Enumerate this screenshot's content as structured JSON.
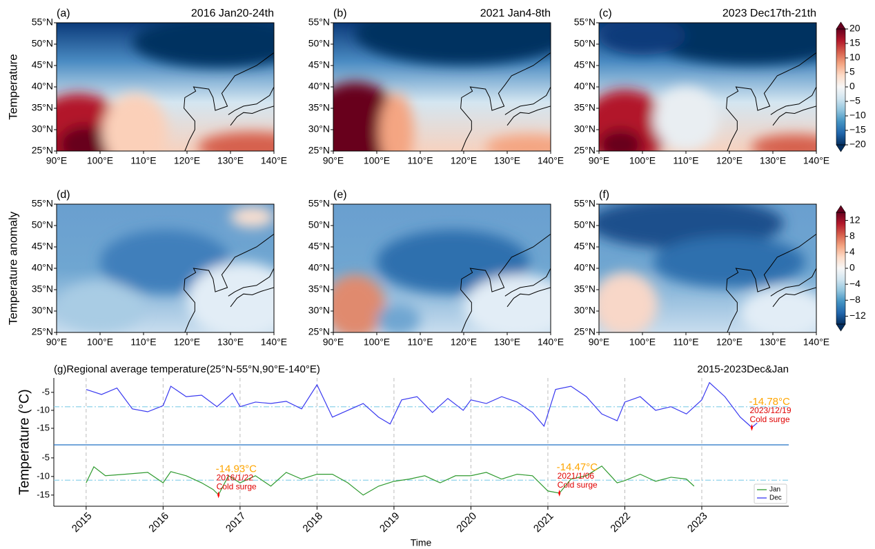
{
  "maps": {
    "lat_lim": [
      25,
      55
    ],
    "lon_lim": [
      90,
      140
    ],
    "lat_ticks": [
      {
        "value": 55,
        "label": "55°N"
      },
      {
        "value": 50,
        "label": "50°N"
      },
      {
        "value": 45,
        "label": "45°N"
      },
      {
        "value": 40,
        "label": "40°N"
      },
      {
        "value": 35,
        "label": "35°N"
      },
      {
        "value": 30,
        "label": "30°N"
      },
      {
        "value": 25,
        "label": "25°N"
      }
    ],
    "lon_ticks": [
      {
        "value": 90,
        "label": "90°E"
      },
      {
        "value": 100,
        "label": "100°E"
      },
      {
        "value": 110,
        "label": "110°E"
      },
      {
        "value": 120,
        "label": "120°E"
      },
      {
        "value": 130,
        "label": "130°E"
      },
      {
        "value": 140,
        "label": "140°E"
      }
    ],
    "rows": [
      {
        "ylabel": "Temperature",
        "panels": [
          {
            "label": "(a)",
            "title": "2016 Jan20-24th"
          },
          {
            "label": "(b)",
            "title": "2021 Jan4-8th"
          },
          {
            "label": "(c)",
            "title": "2023 Dec17th-21th"
          }
        ],
        "colorbar": {
          "lim": [
            -20,
            20
          ],
          "ticks": [
            20,
            15,
            10,
            5,
            0,
            {
              "value": -5,
              "label": "−5"
            },
            {
              "value": -10,
              "label": "−10"
            },
            {
              "value": -15,
              "label": "−15"
            },
            {
              "value": -20,
              "label": "−20"
            }
          ]
        }
      },
      {
        "ylabel": "Temperature anomaly",
        "panels": [
          {
            "label": "(d)"
          },
          {
            "label": "(e)"
          },
          {
            "label": "(f)"
          }
        ],
        "colorbar": {
          "lim": [
            -14,
            14
          ],
          "ticks": [
            12,
            8,
            4,
            0,
            {
              "value": -4,
              "label": "−4"
            },
            {
              "value": -8,
              "label": "−8"
            },
            {
              "value": -12,
              "label": "−12"
            }
          ]
        }
      }
    ]
  },
  "chart_data": {
    "type": "line",
    "title": "(g)Regional average temperature(25°N-55°N,90°E-140°E)",
    "subtitle": "2015-2023Dec&Jan",
    "x_label": "Time",
    "y_label": "Temperature (°C)",
    "xlim": [
      2014.58,
      2024.13
    ],
    "xticks": [
      2015,
      2016,
      2017,
      2018,
      2019,
      2020,
      2021,
      2022,
      2023
    ],
    "ylim": [
      -19.6,
      -1
    ],
    "yticks": [
      -5,
      -10,
      -15
    ],
    "y2lim": [
      -18,
      -1.5
    ],
    "y2ticks": [
      -5,
      -10,
      -15
    ],
    "grid": true,
    "legend": "lower right",
    "series": [
      {
        "name": "Jan",
        "color": "#2e9a2e",
        "axis": "y2",
        "mean": -11,
        "x": [
          2015.0,
          2015.1,
          2015.25,
          2015.5,
          2015.8,
          2016.0,
          2016.1,
          2016.3,
          2016.5,
          2016.65,
          2016.72,
          2016.85,
          2017.0,
          2017.2,
          2017.4,
          2017.6,
          2017.8,
          2018.0,
          2018.2,
          2018.4,
          2018.6,
          2018.8,
          2019.0,
          2019.2,
          2019.4,
          2019.6,
          2019.8,
          2020.0,
          2020.2,
          2020.4,
          2020.6,
          2020.8,
          2021.0,
          2021.15,
          2021.3,
          2021.5,
          2021.7,
          2021.9,
          2022.0,
          2022.2,
          2022.4,
          2022.6,
          2022.8,
          2022.9
        ],
        "values": [
          -11.7,
          -7.4,
          -9.8,
          -9.4,
          -8.9,
          -11.7,
          -8.7,
          -9.8,
          -11.7,
          -13.5,
          -14.93,
          -9.8,
          -11.7,
          -9.8,
          -12.6,
          -8.9,
          -10.7,
          -9.4,
          -9.4,
          -11.7,
          -15,
          -12.6,
          -11.3,
          -10.7,
          -9.8,
          -11.7,
          -9.8,
          -9.8,
          -8.9,
          -10.7,
          -9.4,
          -9.8,
          -13.9,
          -14.47,
          -10.7,
          -9.8,
          -7.2,
          -11.7,
          -11.1,
          -9.4,
          -11.3,
          -10.2,
          -10.7,
          -12.6
        ]
      },
      {
        "name": "Dec",
        "color": "#3838f0",
        "mean": -9,
        "x": [
          2015.0,
          2015.2,
          2015.4,
          2015.6,
          2015.8,
          2016.0,
          2016.1,
          2016.3,
          2016.5,
          2016.7,
          2016.9,
          2017.0,
          2017.2,
          2017.4,
          2017.6,
          2017.8,
          2018.0,
          2018.2,
          2018.4,
          2018.6,
          2018.8,
          2018.95,
          2019.1,
          2019.3,
          2019.5,
          2019.7,
          2019.9,
          2020.0,
          2020.2,
          2020.4,
          2020.6,
          2020.8,
          2020.95,
          2021.1,
          2021.3,
          2021.5,
          2021.7,
          2021.9,
          2022.0,
          2022.2,
          2022.4,
          2022.6,
          2022.8,
          2023.0,
          2023.1,
          2023.3,
          2023.5,
          2023.6,
          2023.65,
          2023.72
        ],
        "values": [
          -4.2,
          -5.6,
          -3.8,
          -9.6,
          -10.4,
          -8.7,
          -3.3,
          -6.2,
          -5.8,
          -9,
          -5.2,
          -9,
          -7.7,
          -8.1,
          -7.5,
          -9.6,
          -2.9,
          -11.9,
          -10,
          -8.1,
          -11.9,
          -13.8,
          -7.1,
          -6.2,
          -10.6,
          -6.7,
          -10,
          -7.1,
          -8.1,
          -6.2,
          -7.7,
          -10.6,
          -14.4,
          -4.2,
          -3.3,
          -6.2,
          -11,
          -12.9,
          -7.7,
          -6.2,
          -10,
          -9,
          -11,
          -7.1,
          -2.3,
          -6.2,
          -11.9,
          -13.8,
          -14.78,
          -13.5
        ]
      }
    ],
    "annotations": [
      {
        "x": 2016.72,
        "y": -14.93,
        "axis": "y2",
        "label": "-14.93°C",
        "date": "2016/1/22",
        "text": "Cold surge"
      },
      {
        "x": 2021.15,
        "y": -14.47,
        "axis": "y2",
        "label": "-14.47°C",
        "date": "2021/1/06",
        "text": "Cold surge"
      },
      {
        "x": 2023.65,
        "y": -14.78,
        "label": "-14.78°C",
        "date": "2023/12/19",
        "text": "Cold surge"
      }
    ]
  }
}
